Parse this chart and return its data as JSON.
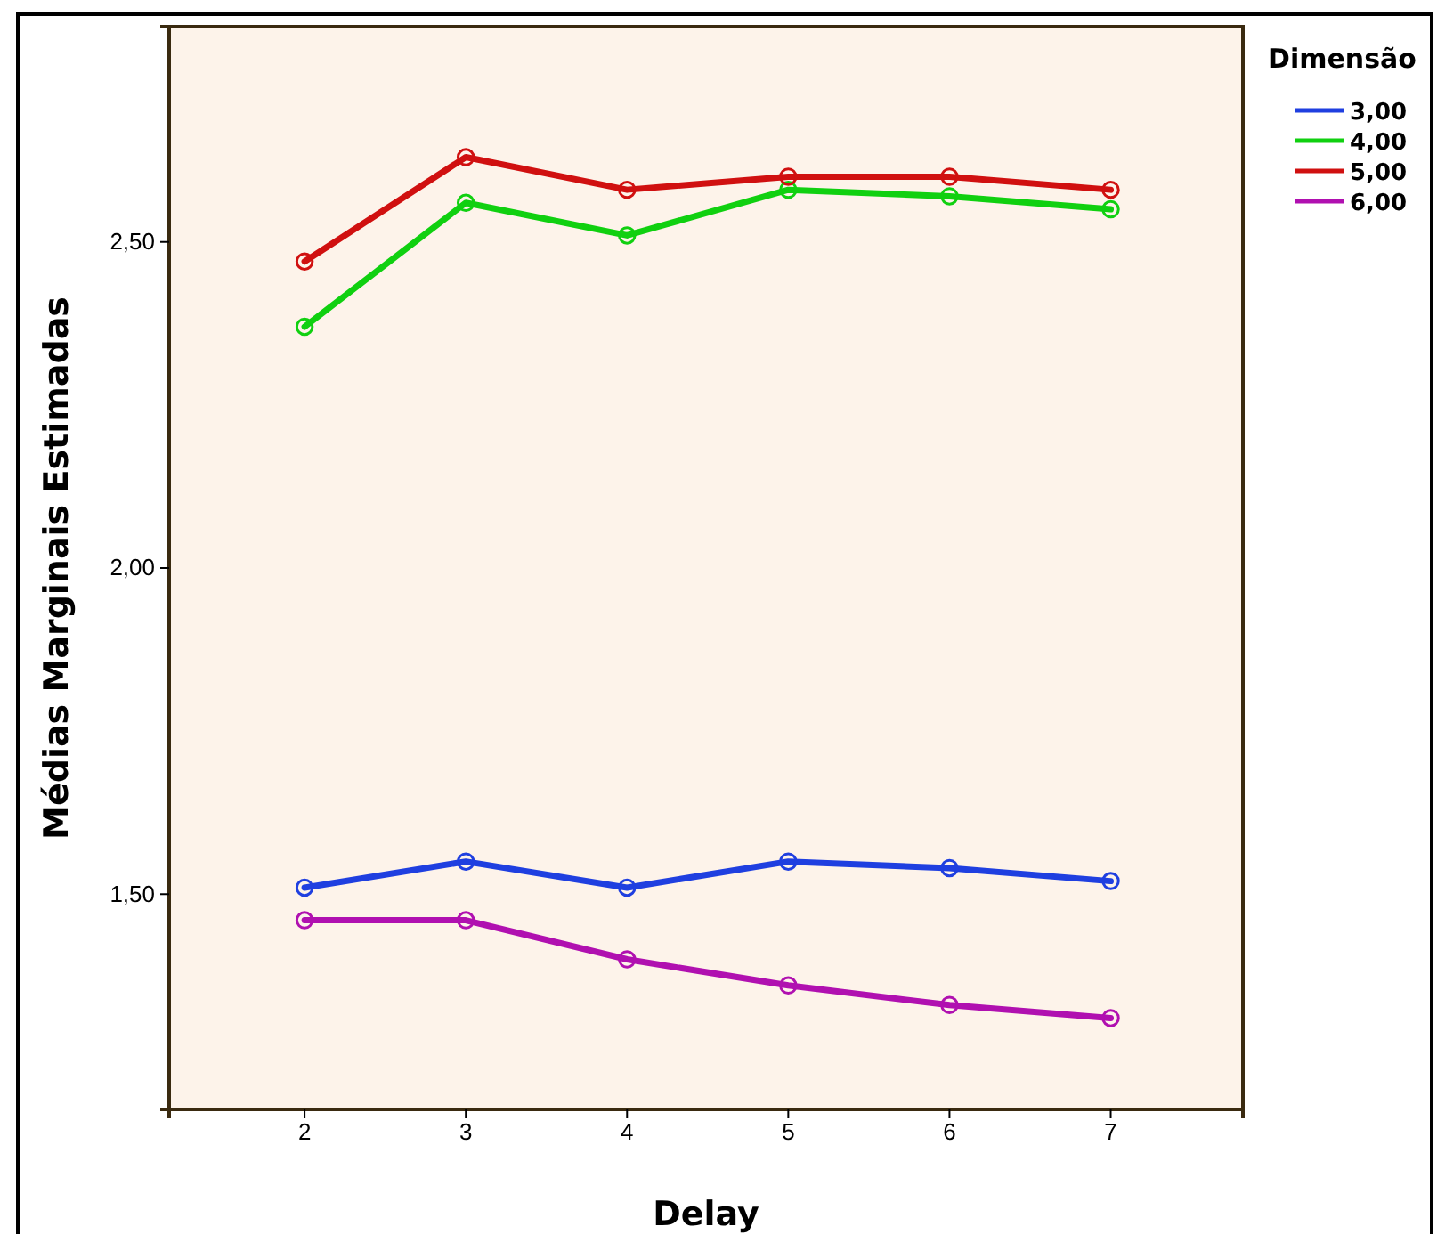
{
  "chart_data": {
    "type": "line",
    "xlabel": "Delay",
    "ylabel": "Médias Marginais Estimadas",
    "legend_title": "Dimensão",
    "legend": "top right",
    "marker": "circle",
    "line_style": "solid",
    "grid": false,
    "x": [
      2,
      3,
      4,
      5,
      6,
      7
    ],
    "xlim": [
      1.16,
      7.82
    ],
    "xticks": [
      2,
      3,
      4,
      5,
      6,
      7
    ],
    "ylim": [
      1.17,
      2.83
    ],
    "yticks": [
      {
        "value": 1.5,
        "label": "1,50"
      },
      {
        "value": 2,
        "label": "2,00"
      },
      {
        "value": 2.5,
        "label": "2,50"
      }
    ],
    "series": [
      {
        "name": "3,00",
        "color": "#1f3fe0",
        "values": [
          1.51,
          1.55,
          1.51,
          1.55,
          1.54,
          1.52
        ]
      },
      {
        "name": "4,00",
        "color": "#10d010",
        "values": [
          2.37,
          2.56,
          2.51,
          2.58,
          2.57,
          2.55
        ]
      },
      {
        "name": "5,00",
        "color": "#d01010",
        "values": [
          2.47,
          2.63,
          2.58,
          2.6,
          2.6,
          2.58
        ]
      },
      {
        "name": "6,00",
        "color": "#b010b0",
        "values": [
          1.46,
          1.46,
          1.4,
          1.36,
          1.33,
          1.31
        ]
      }
    ]
  }
}
